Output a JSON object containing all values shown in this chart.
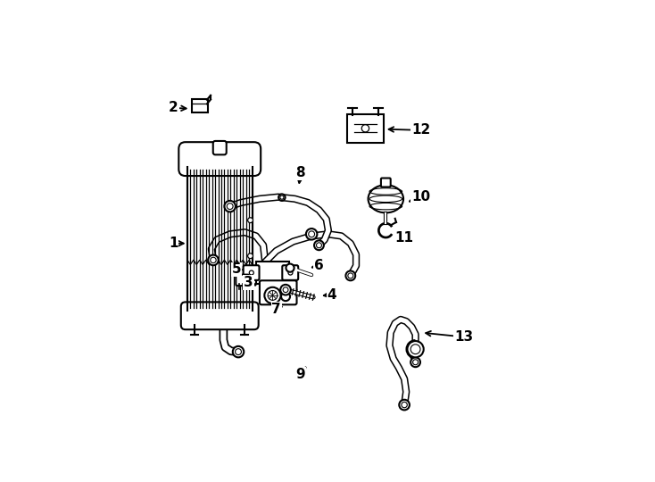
{
  "background_color": "#ffffff",
  "line_color": "#000000",
  "fig_width": 7.34,
  "fig_height": 5.4,
  "dpi": 100,
  "labels": {
    "1": [
      0.068,
      0.5,
      0.115,
      0.5
    ],
    "2": [
      0.068,
      0.865,
      0.115,
      0.865
    ],
    "3": [
      0.285,
      0.38,
      0.325,
      0.37
    ],
    "4": [
      0.495,
      0.36,
      0.455,
      0.355
    ],
    "5": [
      0.245,
      0.425,
      0.285,
      0.418
    ],
    "6": [
      0.455,
      0.435,
      0.42,
      0.428
    ],
    "7": [
      0.355,
      0.315,
      0.375,
      0.335
    ],
    "8": [
      0.415,
      0.685,
      0.405,
      0.645
    ],
    "9": [
      0.415,
      0.145,
      0.435,
      0.175
    ],
    "10": [
      0.73,
      0.62,
      0.685,
      0.6
    ],
    "11": [
      0.69,
      0.51,
      0.665,
      0.525
    ],
    "12": [
      0.735,
      0.8,
      0.69,
      0.795
    ],
    "13": [
      0.845,
      0.245,
      0.785,
      0.255
    ]
  }
}
